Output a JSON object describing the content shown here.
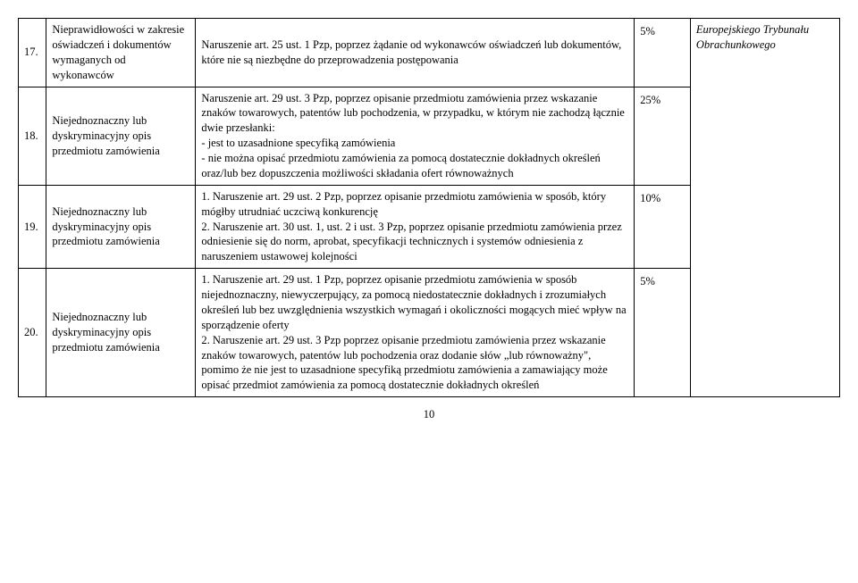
{
  "note_header": "Europejskiego Trybunału Obrachunkowego",
  "rows": [
    {
      "num": "17.",
      "name": "Nieprawidłowości w zakresie oświadczeń i dokumentów wymaganych od wykonawców",
      "desc": "Naruszenie art. 25 ust. 1 Pzp, poprzez żądanie od wykonawców oświadczeń lub dokumentów, które nie są niezbędne do przeprowadzenia postępowania",
      "pct": "5%"
    },
    {
      "num": "18.",
      "name": "Niejednoznaczny lub dyskryminacyjny opis przedmiotu zamówienia",
      "desc": "Naruszenie art. 29 ust. 3 Pzp, poprzez opisanie przedmiotu zamówienia przez wskazanie znaków towarowych, patentów lub pochodzenia,  w przypadku, w którym nie zachodzą łącznie dwie przesłanki:\n - jest to uzasadnione specyfiką zamówienia\n - nie można opisać przedmiotu zamówienia za pomocą dostatecznie dokładnych określeń\noraz/lub bez dopuszczenia możliwości składania ofert równoważnych",
      "pct": "25%"
    },
    {
      "num": "19.",
      "name": "Niejednoznaczny lub dyskryminacyjny opis przedmiotu zamówienia",
      "desc": "1. Naruszenie art. 29 ust. 2 Pzp, poprzez opisanie przedmiotu zamówienia w sposób, który mógłby utrudniać uczciwą konkurencję\n2. Naruszenie art. 30 ust. 1, ust. 2 i ust. 3 Pzp, poprzez opisanie przedmiotu zamówienia przez odniesienie się do norm, aprobat, specyfikacji technicznych i systemów odniesienia z naruszeniem ustawowej kolejności",
      "pct": "10%"
    },
    {
      "num": "20.",
      "name": "Niejednoznaczny lub dyskryminacyjny opis przedmiotu zamówienia",
      "desc": "1. Naruszenie art. 29 ust. 1 Pzp, poprzez opisanie przedmiotu zamówienia w sposób niejednoznaczny, niewyczerpujący, za pomocą niedostatecznie dokładnych i zrozumiałych określeń lub bez uwzględnienia wszystkich wymagań i okoliczności mogących mieć wpływ na sporządzenie oferty\n2. Naruszenie art. 29 ust. 3 Pzp poprzez opisanie przedmiotu zamówienia przez wskazanie znaków towarowych, patentów lub pochodzenia oraz dodanie słów „lub równoważny\", pomimo że nie jest to uzasadnione specyfiką przedmiotu zamówienia a zamawiający może opisać przedmiot zamówienia za pomocą dostatecznie dokładnych określeń",
      "pct": "5%"
    }
  ],
  "page_number": "10"
}
